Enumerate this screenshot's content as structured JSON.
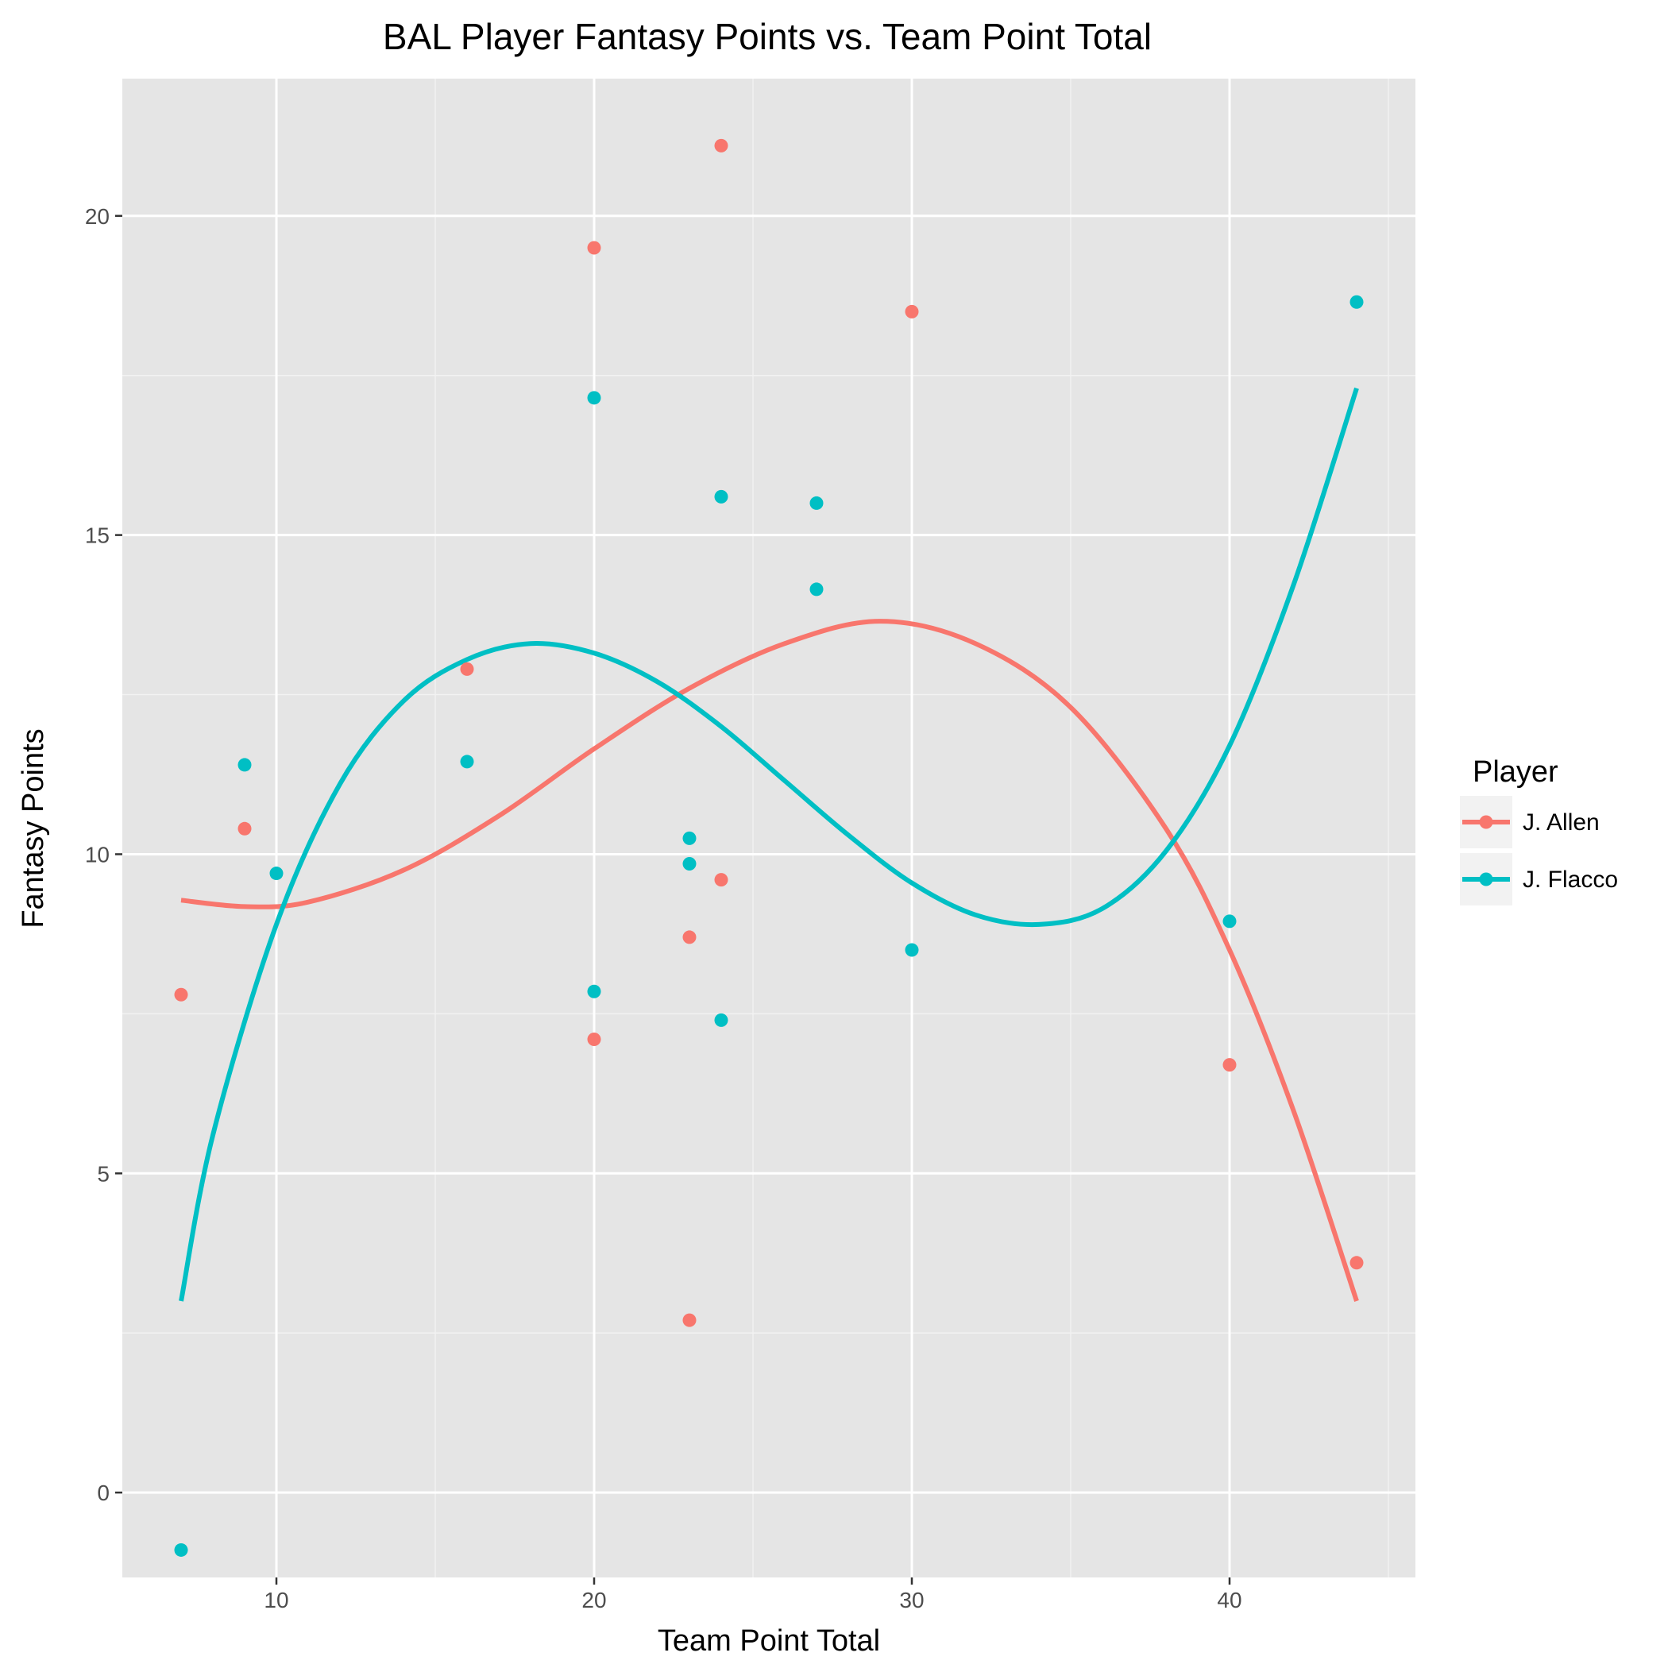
{
  "chart_data": {
    "type": "scatter",
    "title": "BAL Player Fantasy Points vs. Team Point Total",
    "xlabel": "Team Point Total",
    "ylabel": "Fantasy Points",
    "xlim": [
      5.15,
      45.85
    ],
    "ylim": [
      -1.33,
      22.15
    ],
    "xticks": [
      10,
      20,
      30,
      40
    ],
    "yticks": [
      0,
      5,
      10,
      15,
      20
    ],
    "grid": true,
    "background": "#e5e5e5",
    "legend": {
      "title": "Player",
      "position": "right"
    },
    "series": [
      {
        "name": "J. Allen",
        "color": "#f8766d",
        "points": [
          [
            7,
            7.8
          ],
          [
            9,
            10.4
          ],
          [
            16,
            12.9
          ],
          [
            20,
            19.5
          ],
          [
            20,
            7.1
          ],
          [
            23,
            8.7
          ],
          [
            23,
            2.7
          ],
          [
            24,
            21.1
          ],
          [
            24,
            9.6
          ],
          [
            30,
            18.5
          ],
          [
            40,
            6.7
          ],
          [
            44,
            3.6
          ]
        ],
        "fit_curve": [
          [
            7,
            9.28
          ],
          [
            9,
            9.18
          ],
          [
            11,
            9.25
          ],
          [
            14,
            9.75
          ],
          [
            17,
            10.6
          ],
          [
            20,
            11.65
          ],
          [
            23,
            12.6
          ],
          [
            26,
            13.3
          ],
          [
            29,
            13.65
          ],
          [
            32,
            13.3
          ],
          [
            35,
            12.3
          ],
          [
            38,
            10.4
          ],
          [
            40,
            8.5
          ],
          [
            42,
            6.0
          ],
          [
            44,
            3.0
          ]
        ]
      },
      {
        "name": "J. Flacco",
        "color": "#00bfc4",
        "points": [
          [
            7,
            -0.9
          ],
          [
            9,
            11.4
          ],
          [
            10,
            9.7
          ],
          [
            16,
            11.45
          ],
          [
            20,
            17.15
          ],
          [
            20,
            7.85
          ],
          [
            23,
            10.25
          ],
          [
            23,
            9.85
          ],
          [
            24,
            15.6
          ],
          [
            24,
            7.4
          ],
          [
            27,
            15.5
          ],
          [
            27,
            14.15
          ],
          [
            30,
            8.5
          ],
          [
            40,
            8.95
          ],
          [
            44,
            18.65
          ]
        ],
        "fit_curve": [
          [
            7,
            3.0
          ],
          [
            8,
            5.6
          ],
          [
            10,
            8.9
          ],
          [
            12,
            11.1
          ],
          [
            14,
            12.4
          ],
          [
            16,
            13.05
          ],
          [
            18,
            13.3
          ],
          [
            20,
            13.15
          ],
          [
            22,
            12.7
          ],
          [
            24,
            12.0
          ],
          [
            26,
            11.15
          ],
          [
            28,
            10.3
          ],
          [
            30,
            9.55
          ],
          [
            32,
            9.05
          ],
          [
            34,
            8.9
          ],
          [
            36,
            9.15
          ],
          [
            38,
            10.05
          ],
          [
            40,
            11.7
          ],
          [
            42,
            14.2
          ],
          [
            44,
            17.3
          ]
        ]
      }
    ]
  }
}
